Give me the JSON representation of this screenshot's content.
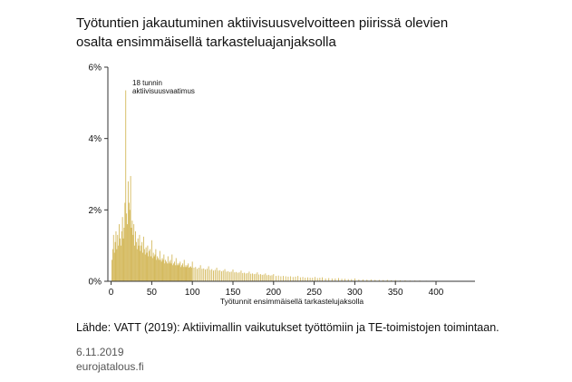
{
  "title_lines": [
    "Työtuntien jakautuminen aktiivisuusvelvoitteen piirissä olevien",
    "osalta ensimmäisellä tarkasteluajanjaksolla"
  ],
  "source": "Lähde: VATT (2019): Aktiivimallin vaikutukset työttömiin ja TE-toimistojen toimintaan.",
  "date": "6.11.2019",
  "site": "eurojatalous.fi",
  "colors": {
    "bar": "#d4b95c",
    "axis": "#333333",
    "text": "#111111"
  },
  "chart_data": {
    "type": "bar",
    "xlabel": "Työtunnit ensimmäisellä tarkastelujaksolla",
    "ylabel": "",
    "xlim": [
      -4,
      448
    ],
    "ylim": [
      0,
      6
    ],
    "xticks": [
      0,
      50,
      100,
      150,
      200,
      250,
      300,
      350,
      400
    ],
    "yticks": [
      0,
      2,
      4,
      6
    ],
    "ytick_labels": [
      "0%",
      "2%",
      "4%",
      "6%"
    ],
    "annotation": {
      "text_lines": [
        "18 tunnin",
        "aktiivisuusvaatimus"
      ],
      "x": 18,
      "y": 5.35
    },
    "bar_width_hours": 1,
    "points": [
      [
        1,
        0.6
      ],
      [
        2,
        0.9
      ],
      [
        3,
        1.3
      ],
      [
        4,
        0.8
      ],
      [
        5,
        1.1
      ],
      [
        6,
        1.4
      ],
      [
        7,
        0.9
      ],
      [
        8,
        1.3
      ],
      [
        9,
        1.0
      ],
      [
        10,
        1.6
      ],
      [
        11,
        1.2
      ],
      [
        12,
        1.0
      ],
      [
        13,
        1.4
      ],
      [
        14,
        1.8
      ],
      [
        15,
        1.2
      ],
      [
        16,
        1.5
      ],
      [
        17,
        2.2
      ],
      [
        18,
        5.35
      ],
      [
        19,
        1.9
      ],
      [
        20,
        1.6
      ],
      [
        21,
        2.8
      ],
      [
        22,
        2.2
      ],
      [
        23,
        2.0
      ],
      [
        24,
        2.95
      ],
      [
        25,
        1.5
      ],
      [
        26,
        1.7
      ],
      [
        27,
        1.3
      ],
      [
        28,
        1.6
      ],
      [
        29,
        1.0
      ],
      [
        30,
        1.4
      ],
      [
        31,
        1.1
      ],
      [
        32,
        0.9
      ],
      [
        33,
        1.2
      ],
      [
        34,
        1.0
      ],
      [
        35,
        1.3
      ],
      [
        36,
        0.85
      ],
      [
        37,
        1.0
      ],
      [
        38,
        1.1
      ],
      [
        39,
        0.8
      ],
      [
        40,
        1.25
      ],
      [
        41,
        0.9
      ],
      [
        42,
        0.75
      ],
      [
        43,
        0.95
      ],
      [
        44,
        0.8
      ],
      [
        45,
        1.0
      ],
      [
        46,
        0.7
      ],
      [
        47,
        0.85
      ],
      [
        48,
        0.9
      ],
      [
        49,
        0.7
      ],
      [
        50,
        1.15
      ],
      [
        51,
        0.65
      ],
      [
        52,
        0.8
      ],
      [
        53,
        0.7
      ],
      [
        54,
        0.75
      ],
      [
        55,
        0.9
      ],
      [
        56,
        0.6
      ],
      [
        57,
        0.7
      ],
      [
        58,
        0.65
      ],
      [
        59,
        0.6
      ],
      [
        60,
        0.85
      ],
      [
        61,
        0.6
      ],
      [
        62,
        0.55
      ],
      [
        63,
        0.65
      ],
      [
        64,
        0.6
      ],
      [
        65,
        0.75
      ],
      [
        66,
        0.5
      ],
      [
        67,
        0.6
      ],
      [
        68,
        0.55
      ],
      [
        69,
        0.5
      ],
      [
        70,
        0.7
      ],
      [
        71,
        0.5
      ],
      [
        72,
        0.55
      ],
      [
        73,
        0.6
      ],
      [
        74,
        0.5
      ],
      [
        75,
        0.75
      ],
      [
        76,
        0.45
      ],
      [
        77,
        0.5
      ],
      [
        78,
        0.55
      ],
      [
        79,
        0.45
      ],
      [
        80,
        0.65
      ],
      [
        81,
        0.45
      ],
      [
        82,
        0.5
      ],
      [
        83,
        0.45
      ],
      [
        84,
        0.5
      ],
      [
        85,
        0.55
      ],
      [
        86,
        0.4
      ],
      [
        87,
        0.45
      ],
      [
        88,
        0.5
      ],
      [
        89,
        0.4
      ],
      [
        90,
        0.6
      ],
      [
        91,
        0.4
      ],
      [
        92,
        0.45
      ],
      [
        93,
        0.4
      ],
      [
        94,
        0.45
      ],
      [
        95,
        0.5
      ],
      [
        96,
        0.38
      ],
      [
        97,
        0.4
      ],
      [
        98,
        0.42
      ],
      [
        99,
        0.38
      ],
      [
        100,
        0.55
      ],
      [
        102,
        0.38
      ],
      [
        104,
        0.4
      ],
      [
        106,
        0.35
      ],
      [
        108,
        0.38
      ],
      [
        110,
        0.45
      ],
      [
        112,
        0.35
      ],
      [
        114,
        0.36
      ],
      [
        116,
        0.33
      ],
      [
        118,
        0.35
      ],
      [
        120,
        0.42
      ],
      [
        122,
        0.32
      ],
      [
        124,
        0.34
      ],
      [
        126,
        0.3
      ],
      [
        128,
        0.32
      ],
      [
        130,
        0.38
      ],
      [
        132,
        0.3
      ],
      [
        134,
        0.31
      ],
      [
        136,
        0.28
      ],
      [
        138,
        0.3
      ],
      [
        140,
        0.34
      ],
      [
        142,
        0.27
      ],
      [
        144,
        0.28
      ],
      [
        146,
        0.26
      ],
      [
        148,
        0.27
      ],
      [
        150,
        0.33
      ],
      [
        152,
        0.25
      ],
      [
        154,
        0.26
      ],
      [
        156,
        0.24
      ],
      [
        158,
        0.25
      ],
      [
        160,
        0.3
      ],
      [
        162,
        0.23
      ],
      [
        164,
        0.24
      ],
      [
        166,
        0.22
      ],
      [
        168,
        0.23
      ],
      [
        170,
        0.27
      ],
      [
        172,
        0.21
      ],
      [
        174,
        0.22
      ],
      [
        176,
        0.2
      ],
      [
        178,
        0.21
      ],
      [
        180,
        0.25
      ],
      [
        182,
        0.19
      ],
      [
        184,
        0.2
      ],
      [
        186,
        0.18
      ],
      [
        188,
        0.19
      ],
      [
        190,
        0.22
      ],
      [
        192,
        0.17
      ],
      [
        194,
        0.18
      ],
      [
        196,
        0.16
      ],
      [
        198,
        0.17
      ],
      [
        200,
        0.2
      ],
      [
        203,
        0.15
      ],
      [
        206,
        0.16
      ],
      [
        209,
        0.14
      ],
      [
        212,
        0.15
      ],
      [
        215,
        0.14
      ],
      [
        218,
        0.13
      ],
      [
        221,
        0.14
      ],
      [
        224,
        0.12
      ],
      [
        227,
        0.13
      ],
      [
        230,
        0.15
      ],
      [
        233,
        0.11
      ],
      [
        236,
        0.12
      ],
      [
        239,
        0.1
      ],
      [
        242,
        0.11
      ],
      [
        245,
        0.1
      ],
      [
        248,
        0.1
      ],
      [
        251,
        0.12
      ],
      [
        254,
        0.09
      ],
      [
        257,
        0.1
      ],
      [
        260,
        0.11
      ],
      [
        264,
        0.08
      ],
      [
        268,
        0.09
      ],
      [
        272,
        0.08
      ],
      [
        276,
        0.08
      ],
      [
        280,
        0.09
      ],
      [
        284,
        0.07
      ],
      [
        288,
        0.07
      ],
      [
        292,
        0.06
      ],
      [
        296,
        0.06
      ],
      [
        300,
        0.08
      ],
      [
        305,
        0.05
      ],
      [
        310,
        0.05
      ],
      [
        315,
        0.045
      ],
      [
        320,
        0.05
      ],
      [
        325,
        0.04
      ],
      [
        330,
        0.04
      ],
      [
        335,
        0.035
      ],
      [
        340,
        0.04
      ],
      [
        345,
        0.03
      ],
      [
        350,
        0.035
      ],
      [
        356,
        0.025
      ],
      [
        362,
        0.025
      ],
      [
        368,
        0.02
      ],
      [
        374,
        0.02
      ],
      [
        380,
        0.02
      ],
      [
        388,
        0.015
      ],
      [
        396,
        0.015
      ],
      [
        404,
        0.01
      ],
      [
        414,
        0.01
      ],
      [
        424,
        0.008
      ]
    ]
  }
}
